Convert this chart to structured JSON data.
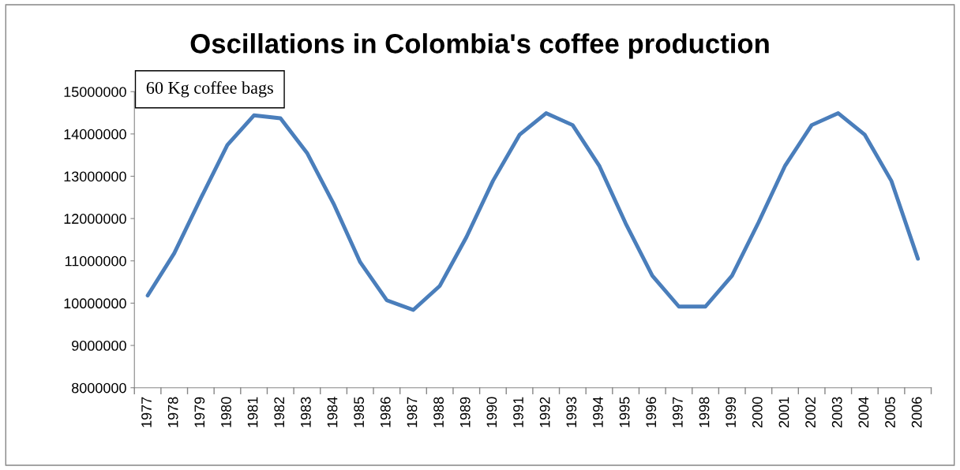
{
  "chart_data": {
    "type": "line",
    "title": "Oscillations in Colombia's coffee production",
    "annotations": [
      "60 Kg coffee bags"
    ],
    "categories": [
      "1977",
      "1978",
      "1979",
      "1980",
      "1981",
      "1982",
      "1983",
      "1984",
      "1985",
      "1986",
      "1987",
      "1988",
      "1989",
      "1990",
      "1991",
      "1992",
      "1993",
      "1994",
      "1995",
      "1996",
      "1997",
      "1998",
      "1999",
      "2000",
      "2001",
      "2002",
      "2003",
      "2004",
      "2005",
      "2006"
    ],
    "series": [
      {
        "color": "#4a7ebb",
        "values": [
          10180000,
          11180000,
          12480000,
          13740000,
          14440000,
          14370000,
          13550000,
          12350000,
          10970000,
          10070000,
          9840000,
          10410000,
          11560000,
          12890000,
          13980000,
          14490000,
          14210000,
          13250000,
          11880000,
          10650000,
          9920000,
          9920000,
          10650000,
          11910000,
          13250000,
          14210000,
          14490000,
          13980000,
          12890000,
          11050000
        ]
      }
    ],
    "ylim": [
      8000000,
      15000000
    ],
    "yticks": [
      8000000,
      9000000,
      10000000,
      11000000,
      12000000,
      13000000,
      14000000,
      15000000
    ],
    "grid": false,
    "legend": false,
    "marker": "none",
    "line_style": "solid"
  }
}
